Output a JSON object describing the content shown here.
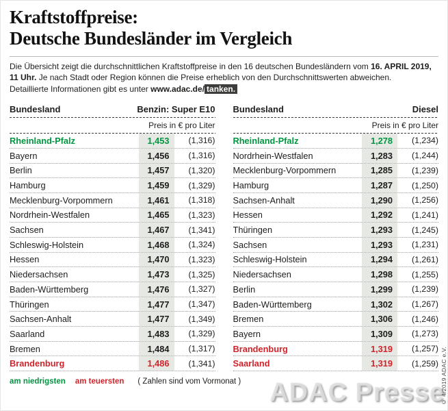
{
  "header": {
    "title_line1": "Kraftstoffpreise:",
    "title_line2": "Deutsche Bundesländer im Vergleich"
  },
  "intro": {
    "seg1": "Die Übersicht zeigt die durchschnittlichen Kraftstoffpreise in den 16 deutschen Bundesländern vom ",
    "date_bold": "16. APRIL 2019, 11 Uhr.",
    "seg2": " Je nach Stadt oder Region können die Preise erheblich von den Durchschnittswerten abweichen.",
    "seg3": "Detaillierte Informationen gibt es unter ",
    "url": "www.adac.de/",
    "url_highlight": "tanken."
  },
  "tables": [
    {
      "state_header": "Bundesland",
      "fuel_header": "Benzin: Super E10",
      "price_unit": "Preis in € pro Liter",
      "rows": [
        {
          "state": "Rheinland-Pfalz",
          "price": "1,453",
          "prev": "(1,316)",
          "highlight": "green"
        },
        {
          "state": "Bayern",
          "price": "1,456",
          "prev": "(1,316)",
          "highlight": ""
        },
        {
          "state": "Berlin",
          "price": "1,457",
          "prev": "(1,320)",
          "highlight": ""
        },
        {
          "state": "Hamburg",
          "price": "1,459",
          "prev": "(1,329)",
          "highlight": ""
        },
        {
          "state": "Mecklenburg-Vorpommern",
          "price": "1,461",
          "prev": "(1,318)",
          "highlight": ""
        },
        {
          "state": "Nordrhein-Westfalen",
          "price": "1,465",
          "prev": "(1,323)",
          "highlight": ""
        },
        {
          "state": "Sachsen",
          "price": "1,467",
          "prev": "(1,341)",
          "highlight": ""
        },
        {
          "state": "Schleswig-Holstein",
          "price": "1,468",
          "prev": "(1,324)",
          "highlight": ""
        },
        {
          "state": "Hessen",
          "price": "1,470",
          "prev": "(1,323)",
          "highlight": ""
        },
        {
          "state": "Niedersachsen",
          "price": "1,473",
          "prev": "(1,325)",
          "highlight": ""
        },
        {
          "state": "Baden-Württemberg",
          "price": "1,476",
          "prev": "(1,327)",
          "highlight": ""
        },
        {
          "state": "Thüringen",
          "price": "1,477",
          "prev": "(1,347)",
          "highlight": ""
        },
        {
          "state": "Sachsen-Anhalt",
          "price": "1,477",
          "prev": "(1,349)",
          "highlight": ""
        },
        {
          "state": "Saarland",
          "price": "1,483",
          "prev": "(1,329)",
          "highlight": ""
        },
        {
          "state": "Bremen",
          "price": "1,484",
          "prev": "(1,317)",
          "highlight": ""
        },
        {
          "state": "Brandenburg",
          "price": "1,486",
          "prev": "(1,341)",
          "highlight": "red"
        }
      ]
    },
    {
      "state_header": "Bundesland",
      "fuel_header": "Diesel",
      "price_unit": "Preis in € pro Liter",
      "rows": [
        {
          "state": "Rheinland-Pfalz",
          "price": "1,278",
          "prev": "(1,234)",
          "highlight": "green"
        },
        {
          "state": "Nordrhein-Westfalen",
          "price": "1,283",
          "prev": "(1,244)",
          "highlight": ""
        },
        {
          "state": "Mecklenburg-Vorpommern",
          "price": "1,285",
          "prev": "(1,239)",
          "highlight": ""
        },
        {
          "state": "Hamburg",
          "price": "1,287",
          "prev": "(1,250)",
          "highlight": ""
        },
        {
          "state": "Sachsen-Anhalt",
          "price": "1,290",
          "prev": "(1,256)",
          "highlight": ""
        },
        {
          "state": "Hessen",
          "price": "1,292",
          "prev": "(1,241)",
          "highlight": ""
        },
        {
          "state": "Thüringen",
          "price": "1,293",
          "prev": "(1,245)",
          "highlight": ""
        },
        {
          "state": "Sachsen",
          "price": "1,293",
          "prev": "(1,231)",
          "highlight": ""
        },
        {
          "state": "Schleswig-Holstein",
          "price": "1,294",
          "prev": "(1,261)",
          "highlight": ""
        },
        {
          "state": "Niedersachsen",
          "price": "1,298",
          "prev": "(1,255)",
          "highlight": ""
        },
        {
          "state": "Berlin",
          "price": "1,299",
          "prev": "(1,239)",
          "highlight": ""
        },
        {
          "state": "Baden-Württemberg",
          "price": "1,302",
          "prev": "(1,267)",
          "highlight": ""
        },
        {
          "state": "Bremen",
          "price": "1,306",
          "prev": "(1,246)",
          "highlight": ""
        },
        {
          "state": "Bayern",
          "price": "1,309",
          "prev": "(1,273)",
          "highlight": ""
        },
        {
          "state": "Brandenburg",
          "price": "1,319",
          "prev": "(1,257)",
          "highlight": "red"
        },
        {
          "state": "Saarland",
          "price": "1,319",
          "prev": "(1,259)",
          "highlight": "red"
        }
      ]
    }
  ],
  "legend": {
    "lowest": "am niedrigsten",
    "highest": "am teuersten",
    "note": "( Zahlen sind vom Vormonat )"
  },
  "watermark": "ADAC Presse",
  "copyright": "© 4/2019 ADAC e.V.",
  "colors": {
    "green": "#009640",
    "red": "#d2232a",
    "band": "#e6e8e3"
  },
  "chart_data": [
    {
      "type": "table",
      "title": "Benzin: Super E10 – Preis in € pro Liter",
      "columns": [
        "Bundesland",
        "Preis",
        "Vormonat"
      ],
      "rows": [
        [
          "Rheinland-Pfalz",
          1.453,
          1.316
        ],
        [
          "Bayern",
          1.456,
          1.316
        ],
        [
          "Berlin",
          1.457,
          1.32
        ],
        [
          "Hamburg",
          1.459,
          1.329
        ],
        [
          "Mecklenburg-Vorpommern",
          1.461,
          1.318
        ],
        [
          "Nordrhein-Westfalen",
          1.465,
          1.323
        ],
        [
          "Sachsen",
          1.467,
          1.341
        ],
        [
          "Schleswig-Holstein",
          1.468,
          1.324
        ],
        [
          "Hessen",
          1.47,
          1.323
        ],
        [
          "Niedersachsen",
          1.473,
          1.325
        ],
        [
          "Baden-Württemberg",
          1.476,
          1.327
        ],
        [
          "Thüringen",
          1.477,
          1.347
        ],
        [
          "Sachsen-Anhalt",
          1.477,
          1.349
        ],
        [
          "Saarland",
          1.483,
          1.329
        ],
        [
          "Bremen",
          1.484,
          1.317
        ],
        [
          "Brandenburg",
          1.486,
          1.341
        ]
      ],
      "lowest_highlight": "Rheinland-Pfalz",
      "highest_highlight": [
        "Brandenburg"
      ]
    },
    {
      "type": "table",
      "title": "Diesel – Preis in € pro Liter",
      "columns": [
        "Bundesland",
        "Preis",
        "Vormonat"
      ],
      "rows": [
        [
          "Rheinland-Pfalz",
          1.278,
          1.234
        ],
        [
          "Nordrhein-Westfalen",
          1.283,
          1.244
        ],
        [
          "Mecklenburg-Vorpommern",
          1.285,
          1.239
        ],
        [
          "Hamburg",
          1.287,
          1.25
        ],
        [
          "Sachsen-Anhalt",
          1.29,
          1.256
        ],
        [
          "Hessen",
          1.292,
          1.241
        ],
        [
          "Thüringen",
          1.293,
          1.245
        ],
        [
          "Sachsen",
          1.293,
          1.231
        ],
        [
          "Schleswig-Holstein",
          1.294,
          1.261
        ],
        [
          "Niedersachsen",
          1.298,
          1.255
        ],
        [
          "Berlin",
          1.299,
          1.239
        ],
        [
          "Baden-Württemberg",
          1.302,
          1.267
        ],
        [
          "Bremen",
          1.306,
          1.246
        ],
        [
          "Bayern",
          1.309,
          1.273
        ],
        [
          "Brandenburg",
          1.319,
          1.257
        ],
        [
          "Saarland",
          1.319,
          1.259
        ]
      ],
      "lowest_highlight": "Rheinland-Pfalz",
      "highest_highlight": [
        "Brandenburg",
        "Saarland"
      ]
    }
  ]
}
